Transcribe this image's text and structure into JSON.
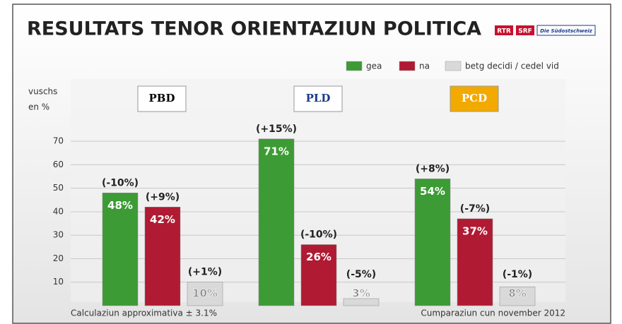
{
  "chart_data": {
    "type": "bar",
    "title": "RESULTATS TENOR ORIENTAZIUN POLITICA",
    "brands": [
      "RTR",
      "SRF",
      "Die Südostschweiz"
    ],
    "y_label": [
      "vuschs",
      "en %"
    ],
    "categories": [
      "PBD",
      "PLD",
      "PCD"
    ],
    "series": [
      {
        "name": "gea",
        "color": "#3d9b35",
        "values": [
          48,
          71,
          54
        ],
        "value_labels": [
          "48%",
          "71%",
          "54%"
        ],
        "change_labels": [
          "(-10%)",
          "(+15%)",
          "(+8%)"
        ]
      },
      {
        "name": "na",
        "color": "#b01a32",
        "values": [
          42,
          26,
          37
        ],
        "value_labels": [
          "42%",
          "26%",
          "37%"
        ],
        "change_labels": [
          "(+9%)",
          "(-10%)",
          "(-7%)"
        ]
      },
      {
        "name": "betg decidi / cedel vid",
        "color": "#d9d9d9",
        "values": [
          10,
          3,
          8
        ],
        "value_labels": [
          "10%",
          "3%",
          "8%"
        ],
        "change_labels": [
          "(+1%)",
          "(-5%)",
          "(-1%)"
        ]
      }
    ],
    "ylim": [
      0,
      95
    ],
    "yticks": [
      10,
      20,
      30,
      40,
      50,
      60,
      70
    ],
    "grid": true,
    "footnotes": [
      "Calculaziun approximativa ± 3.1%",
      "Cumparaziun cun november 2012"
    ]
  }
}
